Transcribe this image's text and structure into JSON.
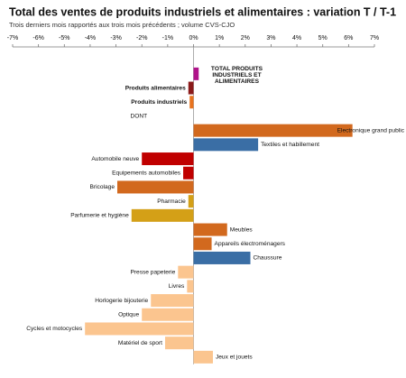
{
  "chart_data": {
    "type": "hbar",
    "title": "Total des ventes de produits industriels et alimentaires : variation T / T-1",
    "subtitle": "Trois derniers mois rapportés aux trois mois précédents ; volume CVS-CJO",
    "categories": [
      "TOTAL PRODUITS INDUSTRIELS ET ALIMENTAIRES",
      "Produits alimentaires",
      "Produits industriels",
      "DONT",
      "Electronique grand public",
      "Textiles et habillement",
      "Automobile neuve",
      "Equipements automobiles",
      "Bricolage",
      "Pharmacie",
      "Parfumerie et hygiène",
      "Meubles",
      "Appareils électroménagers",
      "Chaussure",
      "Presse papeterie",
      "Livres",
      "Horlogerie bijouterie",
      "Optique",
      "Cycles et motocycles",
      "Matériel de sport",
      "Jeux et jouets"
    ],
    "values": [
      0.2,
      -0.2,
      -0.15,
      null,
      6.15,
      2.5,
      -2.0,
      -0.4,
      -2.95,
      -0.2,
      -2.4,
      1.3,
      0.7,
      2.2,
      -0.6,
      -0.25,
      -1.65,
      -2.0,
      -4.2,
      -1.1,
      0.75
    ],
    "colors": [
      "#b0138a",
      "#8b1a1a",
      "#e8731e",
      null,
      "#d2691e",
      "#3a6ea5",
      "#c00000",
      "#c00000",
      "#d2691e",
      "#d4a017",
      "#d4a017",
      "#d2691e",
      "#d2691e",
      "#3a6ea5",
      "#fbc58f",
      "#fbc58f",
      "#fbc58f",
      "#fbc58f",
      "#fbc58f",
      "#fbc58f",
      "#fbc58f"
    ],
    "xlim": [
      -7,
      7
    ],
    "xticks": [
      {
        "value": -7,
        "label": "-7%"
      },
      {
        "value": -6,
        "label": "-6%"
      },
      {
        "value": -5,
        "label": "-5%"
      },
      {
        "value": -4,
        "label": "-4%"
      },
      {
        "value": -3,
        "label": "-3%"
      },
      {
        "value": -2,
        "label": "-2%"
      },
      {
        "value": -1,
        "label": "-1%"
      },
      {
        "value": 0,
        "label": "0%"
      },
      {
        "value": 1,
        "label": "1%"
      },
      {
        "value": 2,
        "label": "2%"
      },
      {
        "value": 3,
        "label": "3%"
      },
      {
        "value": 4,
        "label": "4%"
      },
      {
        "value": 5,
        "label": "5%"
      },
      {
        "value": 6,
        "label": "6%"
      },
      {
        "value": 7,
        "label": "7%"
      }
    ]
  }
}
